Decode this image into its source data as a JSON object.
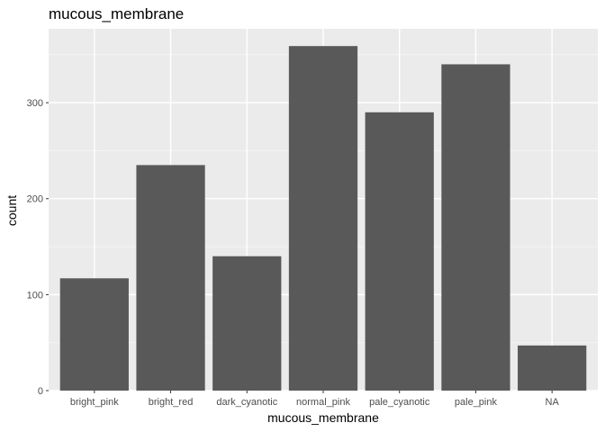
{
  "chart_data": {
    "type": "bar",
    "title": "mucous_membrane",
    "xlabel": "mucous_membrane",
    "ylabel": "count",
    "categories": [
      "bright_pink",
      "bright_red",
      "dark_cyanotic",
      "normal_pink",
      "pale_cyanotic",
      "pale_pink",
      "NA"
    ],
    "values": [
      117,
      235,
      140,
      359,
      290,
      340,
      47
    ],
    "ylim": [
      0,
      377
    ],
    "yticks": [
      0,
      100,
      200,
      300
    ],
    "grid": true,
    "legend": "none",
    "colors": {
      "bar": "#595959",
      "panel": "#ebebeb",
      "grid_major": "#ffffff",
      "grid_minor": "#f5f5f5",
      "tick": "#333333"
    }
  }
}
